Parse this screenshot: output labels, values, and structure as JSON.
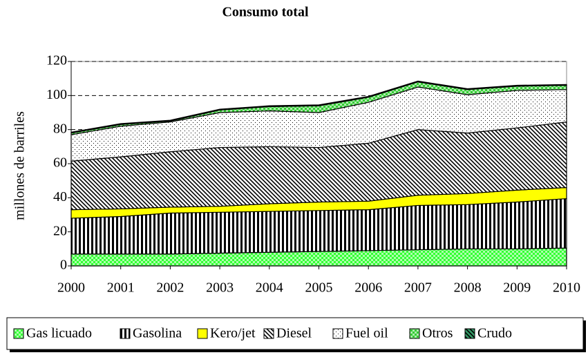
{
  "chart_data": {
    "type": "stacked-area",
    "title": "Consumo total",
    "y_label": "millones de barriles",
    "x": [
      2000,
      2001,
      2002,
      2003,
      2004,
      2005,
      2006,
      2007,
      2008,
      2009,
      2010
    ],
    "xlim": [
      2000,
      2010
    ],
    "xticks": [
      2000,
      2001,
      2002,
      2003,
      2004,
      2005,
      2006,
      2007,
      2008,
      2009,
      2010
    ],
    "ylim": [
      0,
      120
    ],
    "yticks": [
      0,
      20,
      40,
      60,
      80,
      100,
      120
    ],
    "grid": true,
    "legend": "bottom",
    "series": [
      {
        "name": "Gas licuado",
        "color": "#33ff33",
        "pattern": "checker",
        "values": [
          7,
          7,
          7,
          7.5,
          8,
          8.5,
          9,
          9.5,
          10,
          10,
          10.5
        ]
      },
      {
        "name": "Gasolina",
        "color": "#ffffff",
        "pattern": "vertical",
        "values": [
          21,
          22,
          24,
          24,
          24,
          24,
          24,
          26,
          26,
          27.5,
          29
        ]
      },
      {
        "name": "Kero/jet",
        "color": "#ffff00",
        "pattern": "solid",
        "values": [
          5,
          4.5,
          3.5,
          3.5,
          4.5,
          5,
          5,
          6,
          6.5,
          7,
          6.5
        ]
      },
      {
        "name": "Diesel",
        "color": "#ffffff",
        "pattern": "diagonal",
        "values": [
          28.5,
          30.5,
          32.5,
          34.5,
          33.5,
          32,
          34,
          38.5,
          35.5,
          36.5,
          38.5
        ]
      },
      {
        "name": "Fuel oil",
        "color": "#ffffff",
        "pattern": "dots",
        "values": [
          15.5,
          18,
          17.5,
          20.5,
          21,
          20.5,
          24,
          25,
          22.5,
          22,
          19
        ]
      },
      {
        "name": "Otros",
        "color": "#33cc33",
        "pattern": "checker",
        "values": [
          1,
          1,
          0.5,
          1.5,
          2.5,
          4,
          3,
          3,
          3,
          2.5,
          2.5
        ]
      },
      {
        "name": "Crudo",
        "color": "#339966",
        "pattern": "diagonal",
        "values": [
          0.5,
          0.5,
          0.5,
          0.5,
          0.5,
          0.5,
          0.5,
          0.5,
          0.5,
          0.5,
          0.5
        ]
      }
    ]
  }
}
